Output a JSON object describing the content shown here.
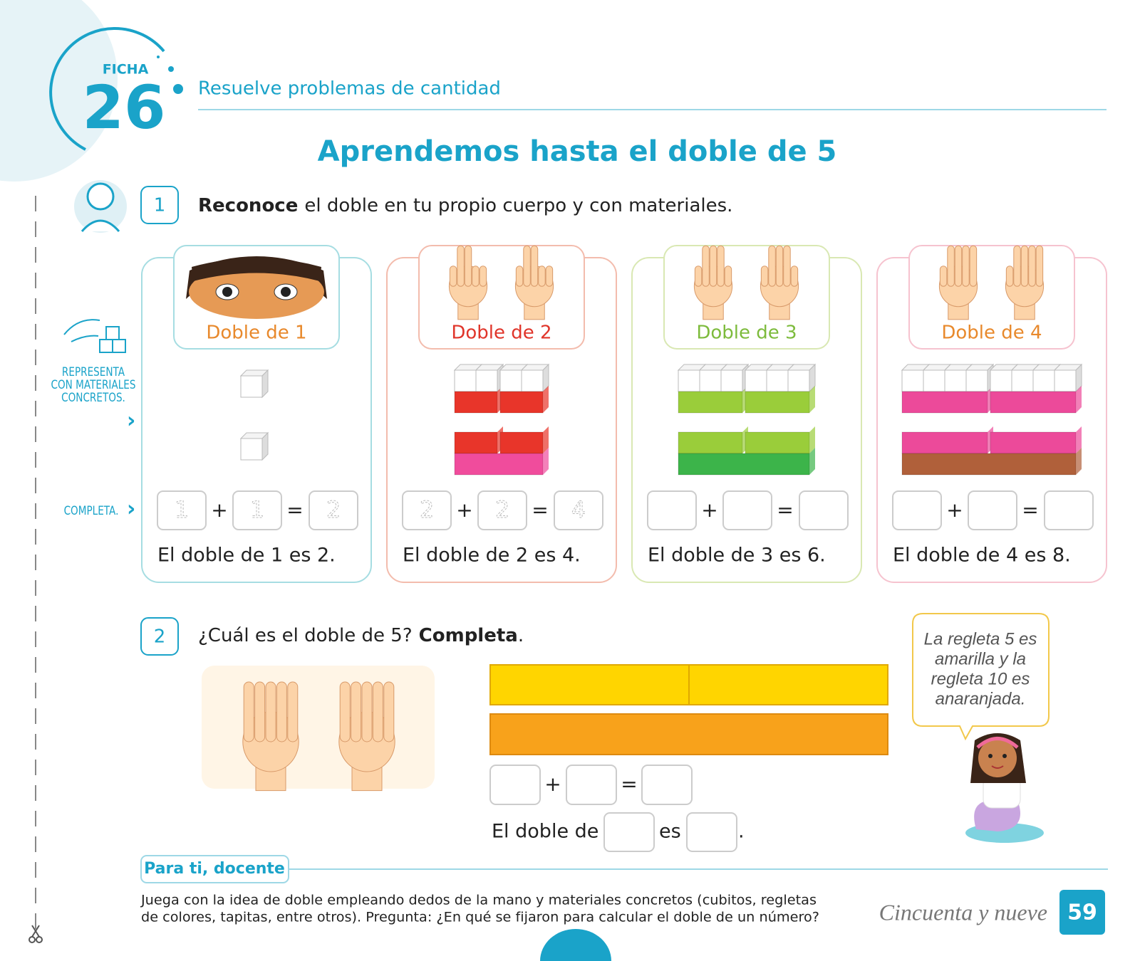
{
  "header": {
    "ficha": "FICHA",
    "number": "26",
    "subtitle": "Resuelve problemas de cantidad",
    "title": "Aprendemos hasta el doble de 5"
  },
  "side_labels": {
    "represent": [
      "REPRESENTA",
      "CON MATERIALES",
      "CONCRETOS."
    ],
    "complete": "COMPLETA."
  },
  "activity1": {
    "number": "1",
    "bold": "Reconoce",
    "text": "el doble en tu propio cuerpo y con materiales.",
    "cards": [
      {
        "label": "Doble de 1",
        "equation": {
          "a": "1",
          "plus": "+",
          "b": "1",
          "equals": "=",
          "result": "2"
        },
        "sentence": "El doble de 1 es 2."
      },
      {
        "label": "Doble de 2",
        "equation": {
          "a": "2",
          "plus": "+",
          "b": "2",
          "equals": "=",
          "result": "4"
        },
        "sentence": "El doble de 2 es 4."
      },
      {
        "label": "Doble de 3",
        "equation": {
          "plus": "+",
          "equals": "="
        },
        "sentence": "El doble de 3 es 6."
      },
      {
        "label": "Doble de 4",
        "equation": {
          "plus": "+",
          "equals": "="
        },
        "sentence": "El doble de 4 es 8."
      }
    ]
  },
  "activity2": {
    "number": "2",
    "question": "¿Cuál es el doble de 5?",
    "bold": "Completa",
    "period": ".",
    "equation": {
      "plus": "+",
      "equals": "="
    },
    "sentence": {
      "start": "El doble de",
      "middle": "es",
      "end": "."
    },
    "bubble": [
      "La regleta 5 es",
      "amarilla y la",
      "regleta 10 es",
      "anaranjada."
    ]
  },
  "teacher": {
    "label": "Para ti, docente",
    "text": [
      "Juega con la idea de doble empleando dedos de la mano y materiales concretos (cubitos, regletas",
      "de colores, tapitas, entre otros). Pregunta: ¿En qué se fijaron para calcular el doble de un número?"
    ]
  },
  "footer": {
    "page_words": "Cincuenta y nueve",
    "page_number": "59"
  }
}
